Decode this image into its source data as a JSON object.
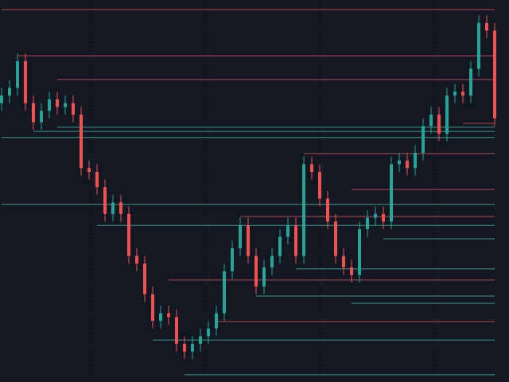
{
  "chart_data": {
    "type": "candlestick",
    "ylim": [
      0,
      100
    ],
    "up_color": "#26a69a",
    "down_color": "#ef5350",
    "open": [
      73,
      75,
      77,
      84,
      73,
      68,
      71,
      74,
      72,
      73,
      70,
      56,
      55,
      51,
      44,
      47,
      44,
      33,
      31,
      23,
      16,
      18,
      17,
      10,
      8,
      10,
      12,
      14,
      18,
      29,
      35,
      41,
      33,
      25,
      30,
      33,
      38,
      41,
      33,
      57,
      55,
      48,
      42,
      33,
      30,
      28,
      40,
      43,
      44,
      42,
      57,
      58,
      56,
      60,
      67,
      70,
      65,
      75,
      76,
      75,
      82,
      94,
      92
    ],
    "high": [
      77,
      79,
      86,
      86,
      75,
      73,
      76,
      76,
      75,
      75,
      72,
      58,
      57,
      53,
      49,
      49,
      46,
      35,
      33,
      25,
      20,
      20,
      19,
      12,
      12,
      14,
      16,
      20,
      31,
      37,
      43,
      43,
      35,
      32,
      35,
      40,
      43,
      43,
      59,
      59,
      57,
      50,
      44,
      35,
      32,
      42,
      45,
      46,
      46,
      59,
      60,
      60,
      62,
      69,
      72,
      72,
      77,
      78,
      78,
      84,
      96,
      96,
      94
    ],
    "low": [
      71,
      73,
      75,
      71,
      66,
      66,
      69,
      70,
      70,
      68,
      54,
      53,
      49,
      42,
      42,
      42,
      31,
      29,
      21,
      14,
      14,
      15,
      8,
      6,
      6,
      8,
      10,
      12,
      16,
      27,
      33,
      31,
      23,
      23,
      28,
      31,
      36,
      31,
      31,
      53,
      46,
      40,
      31,
      28,
      26,
      26,
      38,
      41,
      40,
      40,
      55,
      54,
      54,
      58,
      65,
      63,
      63,
      73,
      73,
      73,
      80,
      90,
      67
    ],
    "close": [
      75,
      77,
      84,
      73,
      68,
      71,
      74,
      72,
      73,
      70,
      56,
      55,
      51,
      44,
      47,
      44,
      33,
      31,
      23,
      16,
      18,
      17,
      10,
      8,
      10,
      12,
      14,
      18,
      29,
      35,
      41,
      33,
      25,
      30,
      33,
      38,
      41,
      33,
      57,
      55,
      48,
      42,
      33,
      30,
      28,
      40,
      43,
      44,
      42,
      57,
      58,
      56,
      60,
      67,
      70,
      65,
      75,
      76,
      75,
      82,
      94,
      92,
      69
    ],
    "levels": [
      {
        "start": 0,
        "value": 97.5,
        "color": "#b04a55"
      },
      {
        "start": 2,
        "value": 85.4,
        "color": "#b04a55"
      },
      {
        "start": 7,
        "value": 79.2,
        "color": "#b04a55"
      },
      {
        "start": 58,
        "value": 67.7,
        "color": "#b04a55"
      },
      {
        "start": 7,
        "value": 66.7,
        "color": "#3d9a8c"
      },
      {
        "start": 4,
        "value": 65.6,
        "color": "#3d9a8c"
      },
      {
        "start": 0,
        "value": 64.0,
        "color": "#3d9a8c"
      },
      {
        "start": 38,
        "value": 59.8,
        "color": "#b04a55"
      },
      {
        "start": 44,
        "value": 50.4,
        "color": "#b04a55"
      },
      {
        "start": 0,
        "value": 46.5,
        "color": "#3d9a8c"
      },
      {
        "start": 30,
        "value": 43.3,
        "color": "#b04a55"
      },
      {
        "start": 12,
        "value": 41.0,
        "color": "#3d9a8c"
      },
      {
        "start": 48,
        "value": 37.5,
        "color": "#3d9a8c"
      },
      {
        "start": 37,
        "value": 29.6,
        "color": "#3d9a8c"
      },
      {
        "start": 21,
        "value": 26.7,
        "color": "#b04a55"
      },
      {
        "start": 32,
        "value": 22.5,
        "color": "#3d9a8c"
      },
      {
        "start": 44,
        "value": 20.6,
        "color": "#3d9a8c"
      },
      {
        "start": 27,
        "value": 15.8,
        "color": "#b04a55"
      },
      {
        "start": 19,
        "value": 11.0,
        "color": "#3d9a8c"
      },
      {
        "start": 23,
        "value": 1.9,
        "color": "#3d9a8c"
      }
    ]
  }
}
